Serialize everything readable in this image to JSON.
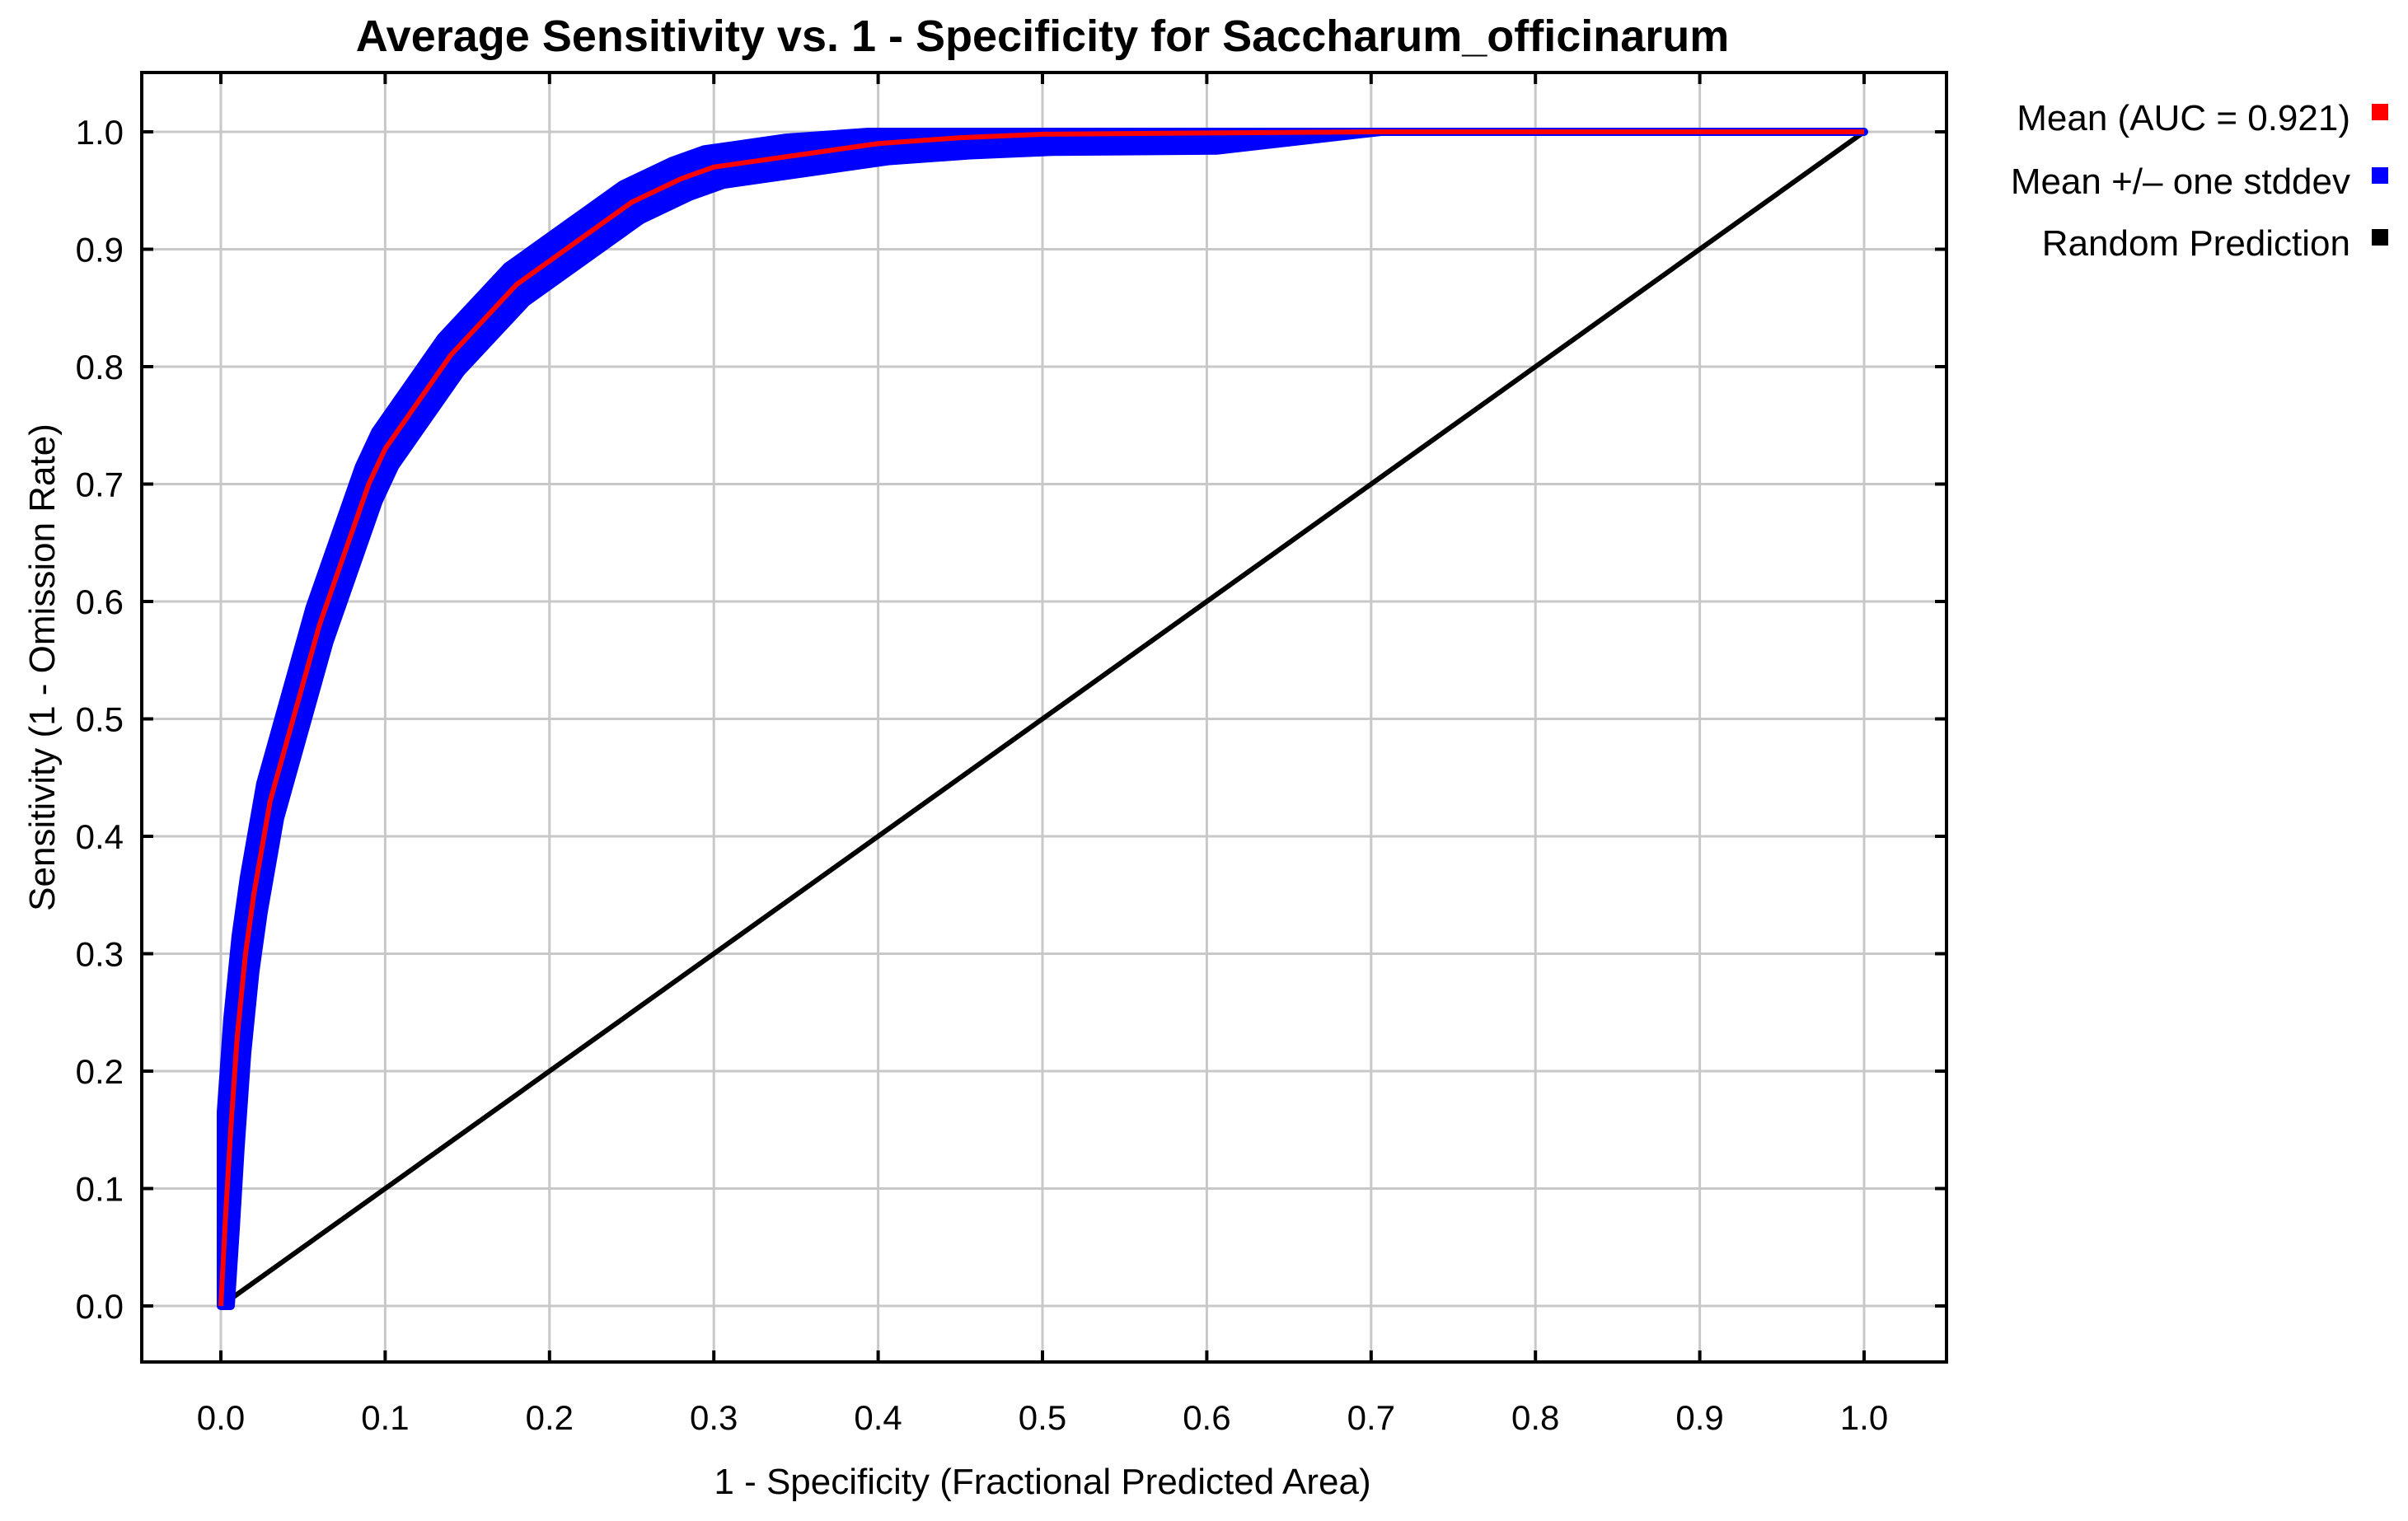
{
  "chart_data": {
    "type": "line",
    "title": "Average Sensitivity vs. 1 - Specificity for Saccharum_officinarum",
    "xlabel": "1 - Specificity (Fractional Predicted Area)",
    "ylabel": "Sensitivity (1 - Omission Rate)",
    "xlim": [
      0,
      1
    ],
    "ylim": [
      0,
      1
    ],
    "grid": true,
    "legend_position": "right",
    "x_ticks": [
      "0.0",
      "0.1",
      "0.2",
      "0.3",
      "0.4",
      "0.5",
      "0.6",
      "0.7",
      "0.8",
      "0.9",
      "1.0"
    ],
    "y_ticks": [
      "0.0",
      "0.1",
      "0.2",
      "0.3",
      "0.4",
      "0.5",
      "0.6",
      "0.7",
      "0.8",
      "0.9",
      "1.0"
    ],
    "colors": {
      "mean": "#ff0000",
      "stddev": "#0000ff",
      "random": "#000000",
      "grid": "#c8c8c8",
      "frame": "#000000"
    },
    "series": [
      {
        "name": "Mean (AUC = 0.921)",
        "x": [
          0.0,
          0.003,
          0.006,
          0.01,
          0.015,
          0.02,
          0.025,
          0.03,
          0.04,
          0.05,
          0.06,
          0.07,
          0.08,
          0.09,
          0.1,
          0.12,
          0.14,
          0.16,
          0.18,
          0.2,
          0.22,
          0.25,
          0.28,
          0.3,
          0.35,
          0.4,
          0.45,
          0.5,
          0.6,
          0.7,
          0.8,
          0.9,
          1.0
        ],
        "y": [
          0.0,
          0.08,
          0.15,
          0.23,
          0.3,
          0.35,
          0.39,
          0.43,
          0.48,
          0.53,
          0.58,
          0.62,
          0.66,
          0.7,
          0.73,
          0.77,
          0.81,
          0.84,
          0.87,
          0.89,
          0.91,
          0.94,
          0.96,
          0.97,
          0.98,
          0.99,
          0.995,
          0.998,
          0.999,
          1.0,
          1.0,
          1.0,
          1.0
        ]
      },
      {
        "name": "Mean +/– one stddev",
        "band_halfwidth": 0.015
      },
      {
        "name": "Random Prediction",
        "x": [
          0,
          1
        ],
        "y": [
          0,
          1
        ]
      }
    ]
  }
}
